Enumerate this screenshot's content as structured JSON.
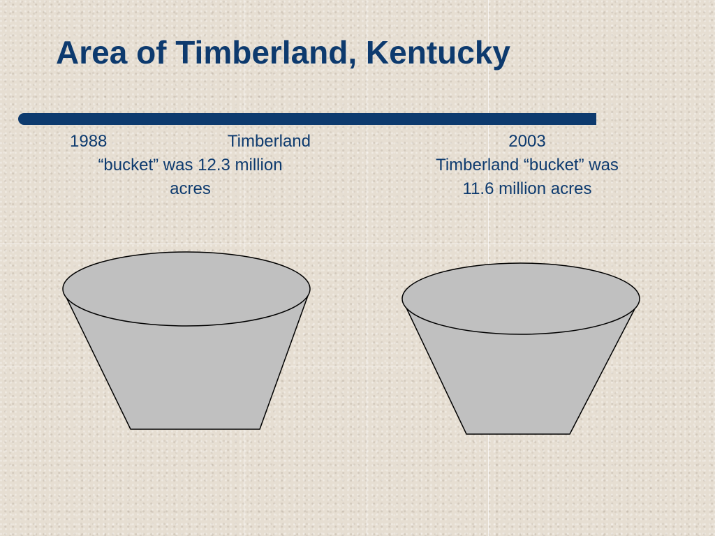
{
  "slide": {
    "title": "Area of Timberland, Kentucky"
  },
  "buckets": [
    {
      "year": "1988",
      "line1_rest": "Timberland",
      "line2": "“bucket” was 12.3 million",
      "line3": "acres",
      "value": 12.3
    },
    {
      "year": "2003",
      "line2": "Timberland “bucket” was",
      "line3": "11.6 million acres",
      "value": 11.6
    }
  ],
  "colors": {
    "title": "#0d3a6e",
    "bucket_fill": "#c0c0c0",
    "bucket_stroke": "#000000",
    "background": "#e6ded2"
  }
}
